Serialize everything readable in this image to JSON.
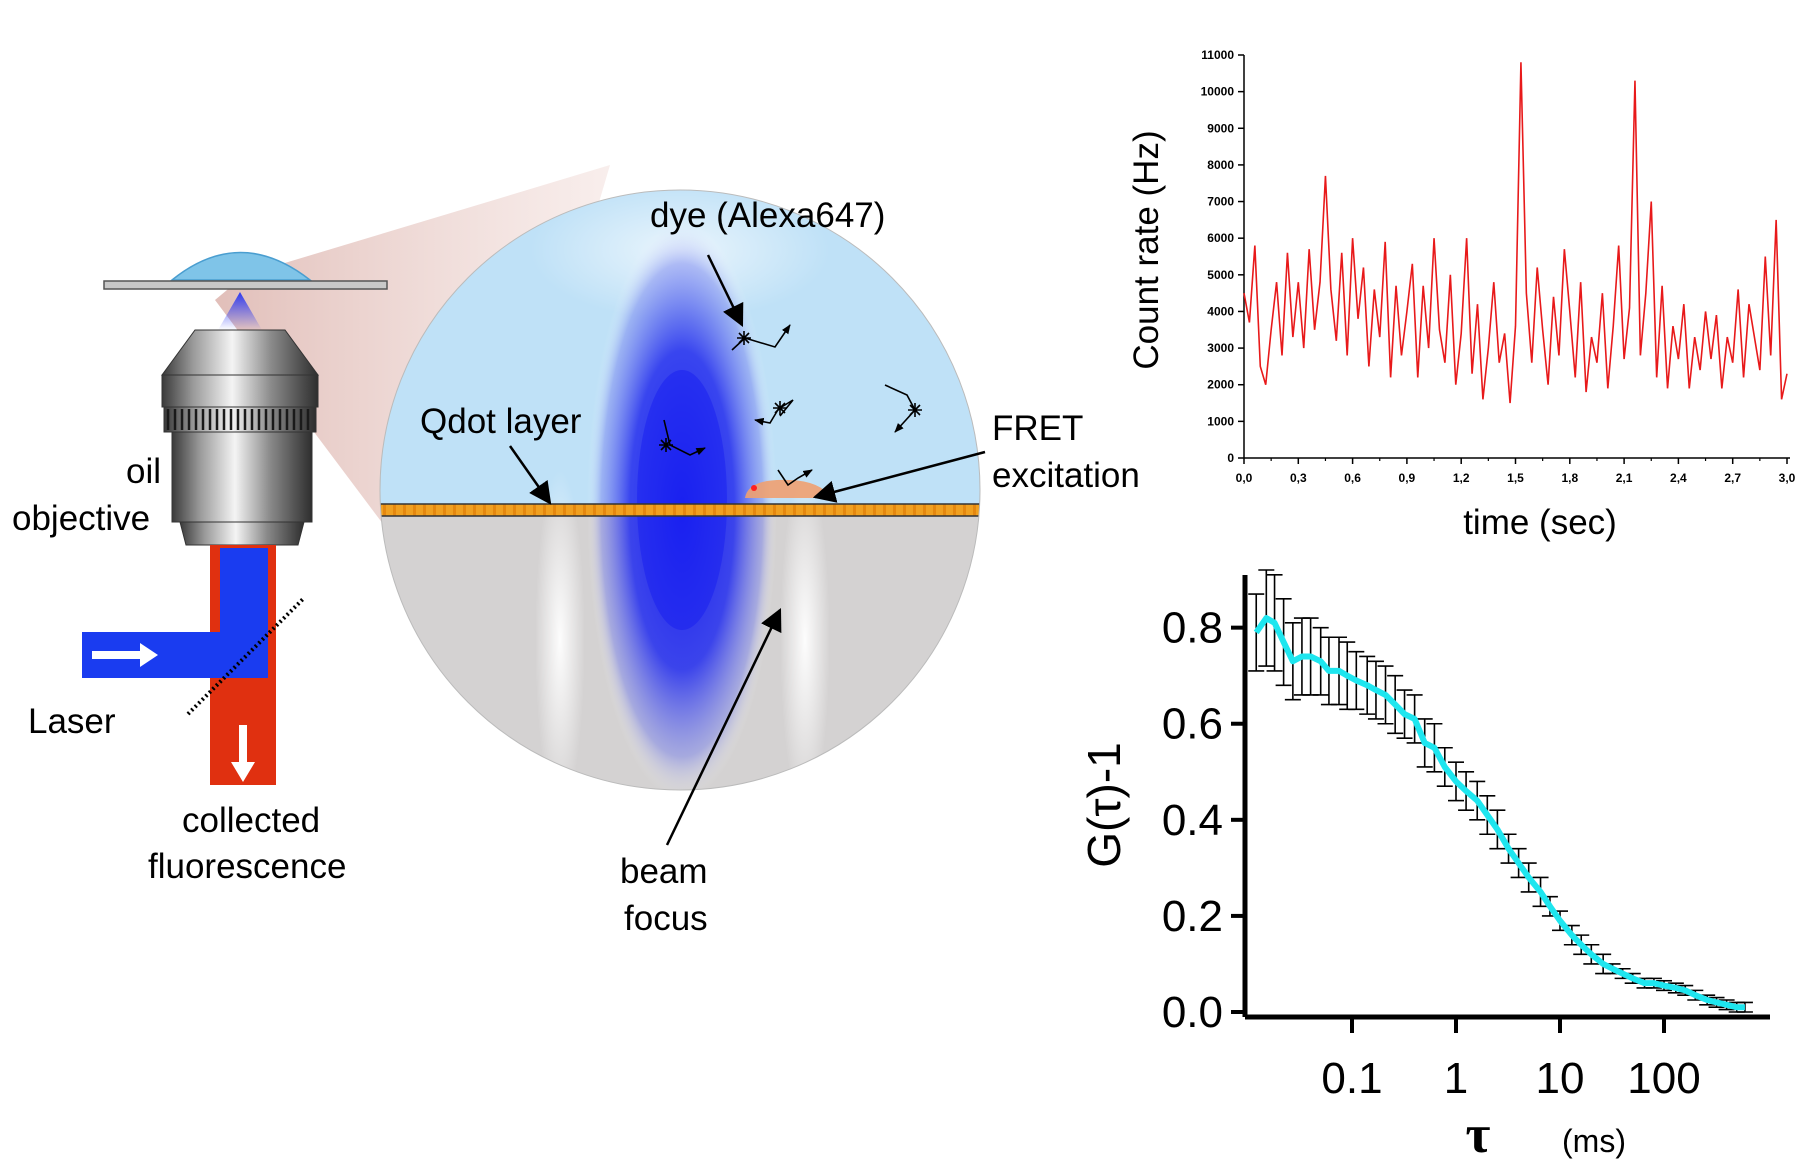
{
  "labels": {
    "oil": "oil",
    "objective": "objective",
    "laser": "Laser",
    "collected": "collected",
    "fluorescence": "fluorescence",
    "qdot_layer": "Qdot layer",
    "dye": "dye (Alexa647)",
    "fret_line1": "FRET",
    "fret_line2": "excitation",
    "beam_line1": "beam",
    "beam_line2": "focus"
  },
  "colors": {
    "laser_blue": "#1a3cf0",
    "fluorescence_red": "#e03010",
    "immersion_blue": "#7fc4e8",
    "sample_blue": "#bfe1f7",
    "glass_gray": "#d4d2d2",
    "qdot_orange": "#f0a020",
    "trace_red": "#e8191a",
    "fcs_cyan": "#1ee6ef"
  },
  "chart_data": [
    {
      "type": "line",
      "xlabel": "time (sec)",
      "ylabel": "Count rate (Hz)",
      "xlim": [
        0,
        3.0
      ],
      "ylim": [
        0,
        11000
      ],
      "xticks": [
        "0,0",
        "0,3",
        "0,6",
        "0,9",
        "1,2",
        "1,5",
        "1,8",
        "2,1",
        "2,4",
        "2,7",
        "3,0"
      ],
      "yticks": [
        "0",
        "1000",
        "2000",
        "3000",
        "4000",
        "5000",
        "6000",
        "7000",
        "8000",
        "9000",
        "10000",
        "11000"
      ],
      "series": [
        {
          "color": "#e8191a",
          "x": [
            0.0,
            0.03,
            0.06,
            0.09,
            0.12,
            0.15,
            0.18,
            0.21,
            0.24,
            0.27,
            0.3,
            0.33,
            0.36,
            0.39,
            0.42,
            0.45,
            0.48,
            0.51,
            0.54,
            0.57,
            0.6,
            0.63,
            0.66,
            0.69,
            0.72,
            0.75,
            0.78,
            0.81,
            0.84,
            0.87,
            0.9,
            0.93,
            0.96,
            0.99,
            1.02,
            1.05,
            1.08,
            1.11,
            1.14,
            1.17,
            1.2,
            1.23,
            1.26,
            1.29,
            1.32,
            1.35,
            1.38,
            1.41,
            1.44,
            1.47,
            1.5,
            1.53,
            1.56,
            1.59,
            1.62,
            1.65,
            1.68,
            1.71,
            1.74,
            1.77,
            1.8,
            1.83,
            1.86,
            1.89,
            1.92,
            1.95,
            1.98,
            2.01,
            2.04,
            2.07,
            2.1,
            2.13,
            2.16,
            2.19,
            2.22,
            2.25,
            2.28,
            2.31,
            2.34,
            2.37,
            2.4,
            2.43,
            2.46,
            2.49,
            2.52,
            2.55,
            2.58,
            2.61,
            2.64,
            2.67,
            2.7,
            2.73,
            2.76,
            2.79,
            2.82,
            2.85,
            2.88,
            2.91,
            2.94,
            2.97,
            3.0
          ],
          "values": [
            4500,
            3700,
            5800,
            2500,
            2000,
            3500,
            4800,
            2800,
            5600,
            3300,
            4800,
            3000,
            5700,
            3500,
            4800,
            7700,
            4600,
            3200,
            5600,
            2800,
            6000,
            3800,
            5200,
            2500,
            4600,
            3300,
            5900,
            2200,
            4700,
            2800,
            4000,
            5300,
            2200,
            4700,
            3000,
            6000,
            3500,
            2600,
            5000,
            2000,
            3400,
            6000,
            2300,
            4200,
            1600,
            3000,
            4800,
            2600,
            3400,
            1500,
            3600,
            10800,
            4500,
            2600,
            5200,
            3500,
            2000,
            4400,
            2800,
            5700,
            4000,
            2200,
            4800,
            1800,
            3300,
            2600,
            4500,
            1900,
            3600,
            5800,
            2700,
            4100,
            10300,
            2800,
            4500,
            7000,
            2200,
            4700,
            1900,
            3600,
            2700,
            4200,
            1900,
            3300,
            2400,
            4000,
            2700,
            3900,
            1900,
            3300,
            2600,
            4600,
            2200,
            4200,
            3300,
            2400,
            5500,
            2800,
            6500,
            1600,
            2300
          ]
        }
      ]
    },
    {
      "type": "line",
      "xlabel": "τ",
      "xunit": "(ms)",
      "ylabel": "G(τ)-1",
      "xscale": "log",
      "xlim": [
        0.01,
        700
      ],
      "ylim": [
        0,
        0.92
      ],
      "xticks": [
        "0.1",
        "1",
        "10",
        "100"
      ],
      "yticks": [
        "0.0",
        "0.2",
        "0.4",
        "0.6",
        "0.8"
      ],
      "series": [
        {
          "color": "#1ee6ef",
          "error_bars": true,
          "x": [
            0.012,
            0.015,
            0.018,
            0.022,
            0.027,
            0.033,
            0.04,
            0.05,
            0.06,
            0.075,
            0.09,
            0.11,
            0.14,
            0.17,
            0.21,
            0.26,
            0.32,
            0.4,
            0.5,
            0.62,
            0.78,
            1.0,
            1.25,
            1.6,
            2.0,
            2.5,
            3.2,
            4.0,
            5.0,
            6.5,
            8.0,
            10,
            13,
            16,
            20,
            26,
            32,
            40,
            50,
            65,
            80,
            100,
            130,
            160,
            200,
            260,
            320,
            400,
            500,
            600
          ],
          "values": [
            0.79,
            0.82,
            0.81,
            0.77,
            0.73,
            0.74,
            0.74,
            0.73,
            0.71,
            0.71,
            0.7,
            0.69,
            0.68,
            0.67,
            0.66,
            0.64,
            0.62,
            0.61,
            0.56,
            0.55,
            0.51,
            0.48,
            0.46,
            0.44,
            0.41,
            0.38,
            0.34,
            0.31,
            0.28,
            0.25,
            0.22,
            0.19,
            0.16,
            0.14,
            0.12,
            0.1,
            0.09,
            0.08,
            0.07,
            0.06,
            0.06,
            0.055,
            0.05,
            0.045,
            0.035,
            0.025,
            0.02,
            0.015,
            0.01,
            0.01
          ],
          "errors": [
            0.08,
            0.1,
            0.1,
            0.09,
            0.08,
            0.08,
            0.08,
            0.07,
            0.07,
            0.07,
            0.07,
            0.06,
            0.06,
            0.06,
            0.06,
            0.06,
            0.05,
            0.05,
            0.05,
            0.05,
            0.04,
            0.04,
            0.04,
            0.04,
            0.04,
            0.04,
            0.03,
            0.03,
            0.03,
            0.03,
            0.02,
            0.02,
            0.02,
            0.02,
            0.02,
            0.02,
            0.01,
            0.01,
            0.01,
            0.01,
            0.01,
            0.01,
            0.01,
            0.01,
            0.01,
            0.01,
            0.01,
            0.01,
            0.01,
            0.01
          ]
        }
      ]
    }
  ]
}
